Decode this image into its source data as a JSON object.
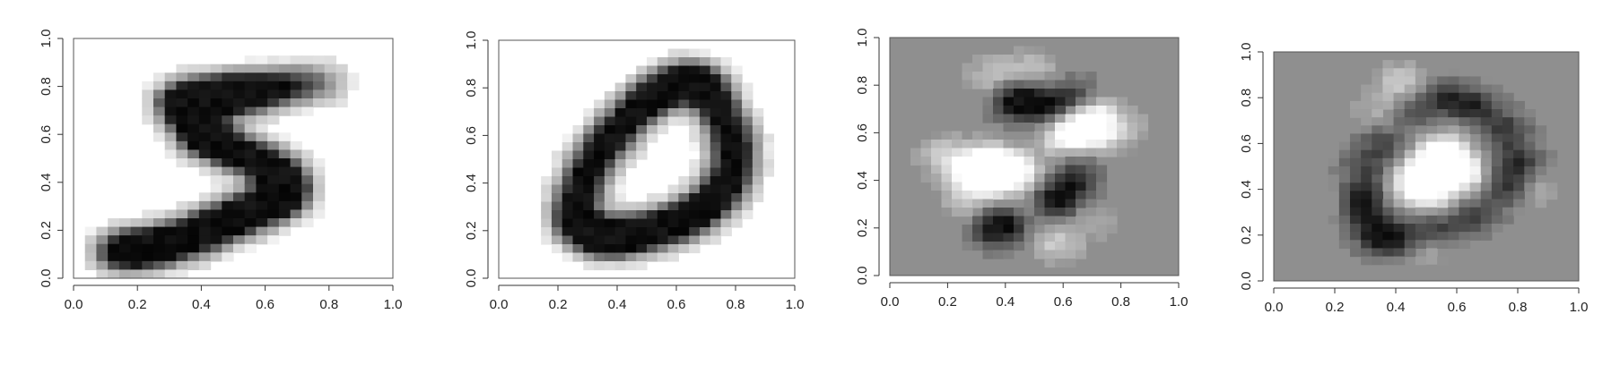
{
  "chart_data": [
    {
      "type": "heatmap",
      "xlim": [
        0,
        1
      ],
      "ylim": [
        0,
        1
      ],
      "x_ticks": [
        "0.0",
        "0.2",
        "0.4",
        "0.6",
        "0.8",
        "1.0"
      ],
      "y_ticks": [
        "0.0",
        "0.2",
        "0.4",
        "0.6",
        "0.8",
        "1.0"
      ],
      "grid": false,
      "colormap": "grayscale",
      "background": "#ffffff",
      "cells": [
        [
          0.14,
          0.11,
          0.92
        ],
        [
          0.2,
          0.12,
          0.9
        ],
        [
          0.26,
          0.13,
          0.85
        ],
        [
          0.32,
          0.15,
          0.78
        ],
        [
          0.38,
          0.18,
          0.85
        ],
        [
          0.44,
          0.21,
          0.88
        ],
        [
          0.5,
          0.25,
          0.9
        ],
        [
          0.56,
          0.28,
          0.85
        ],
        [
          0.62,
          0.31,
          0.82
        ],
        [
          0.67,
          0.35,
          0.9
        ],
        [
          0.66,
          0.42,
          0.88
        ],
        [
          0.6,
          0.48,
          0.85
        ],
        [
          0.52,
          0.52,
          0.88
        ],
        [
          0.45,
          0.56,
          0.82
        ],
        [
          0.4,
          0.6,
          0.86
        ],
        [
          0.38,
          0.66,
          0.9
        ],
        [
          0.33,
          0.73,
          0.88
        ],
        [
          0.38,
          0.75,
          0.92
        ],
        [
          0.44,
          0.76,
          0.9
        ],
        [
          0.5,
          0.77,
          0.92
        ],
        [
          0.56,
          0.77,
          0.8
        ],
        [
          0.62,
          0.79,
          0.6
        ],
        [
          0.68,
          0.8,
          0.45
        ],
        [
          0.74,
          0.81,
          0.35
        ],
        [
          0.8,
          0.82,
          0.25
        ]
      ]
    },
    {
      "type": "heatmap",
      "xlim": [
        0,
        1
      ],
      "ylim": [
        0,
        1
      ],
      "x_ticks": [
        "0.0",
        "0.2",
        "0.4",
        "0.6",
        "0.8",
        "1.0"
      ],
      "y_ticks": [
        "0.0",
        "0.2",
        "0.4",
        "0.6",
        "0.8",
        "1.0"
      ],
      "grid": false,
      "colormap": "grayscale",
      "background": "#ffffff",
      "cells": [
        [
          0.25,
          0.25,
          0.9
        ],
        [
          0.27,
          0.35,
          0.92
        ],
        [
          0.3,
          0.45,
          0.92
        ],
        [
          0.35,
          0.55,
          0.9
        ],
        [
          0.4,
          0.62,
          0.88
        ],
        [
          0.46,
          0.7,
          0.9
        ],
        [
          0.52,
          0.76,
          0.92
        ],
        [
          0.58,
          0.81,
          0.92
        ],
        [
          0.65,
          0.84,
          0.85
        ],
        [
          0.7,
          0.8,
          0.9
        ],
        [
          0.74,
          0.72,
          0.9
        ],
        [
          0.78,
          0.62,
          0.92
        ],
        [
          0.8,
          0.52,
          0.92
        ],
        [
          0.78,
          0.42,
          0.9
        ],
        [
          0.74,
          0.34,
          0.9
        ],
        [
          0.68,
          0.28,
          0.88
        ],
        [
          0.62,
          0.24,
          0.85
        ],
        [
          0.55,
          0.21,
          0.9
        ],
        [
          0.48,
          0.19,
          0.9
        ],
        [
          0.41,
          0.17,
          0.92
        ],
        [
          0.35,
          0.17,
          0.9
        ],
        [
          0.3,
          0.19,
          0.9
        ]
      ]
    },
    {
      "type": "heatmap",
      "xlim": [
        0,
        1
      ],
      "ylim": [
        0,
        1
      ],
      "x_ticks": [
        "0.0",
        "0.2",
        "0.4",
        "0.6",
        "0.8",
        "1.0"
      ],
      "y_ticks": [
        "0.0",
        "0.2",
        "0.4",
        "0.6",
        "0.8",
        "1.0"
      ],
      "grid": false,
      "colormap": "grayscale",
      "background": "#8f8f8f",
      "cells": [
        [
          0.3,
          0.4,
          0.85
        ],
        [
          0.38,
          0.42,
          0.9
        ],
        [
          0.44,
          0.44,
          0.85
        ],
        [
          0.34,
          0.48,
          0.7
        ],
        [
          0.26,
          0.46,
          0.6
        ],
        [
          0.66,
          0.62,
          0.92
        ],
        [
          0.72,
          0.66,
          0.85
        ],
        [
          0.6,
          0.58,
          0.7
        ],
        [
          0.48,
          0.72,
          -0.85
        ],
        [
          0.42,
          0.74,
          -0.7
        ],
        [
          0.56,
          0.72,
          -0.6
        ],
        [
          0.64,
          0.76,
          -0.5
        ],
        [
          0.36,
          0.2,
          -0.85
        ],
        [
          0.42,
          0.22,
          -0.75
        ],
        [
          0.56,
          0.3,
          -0.8
        ],
        [
          0.62,
          0.36,
          -0.7
        ],
        [
          0.66,
          0.44,
          -0.5
        ],
        [
          0.58,
          0.14,
          0.5
        ],
        [
          0.46,
          0.26,
          0.4
        ],
        [
          0.36,
          0.84,
          0.45
        ],
        [
          0.5,
          0.86,
          0.4
        ],
        [
          0.18,
          0.5,
          0.4
        ],
        [
          0.74,
          0.56,
          0.35
        ],
        [
          0.7,
          0.24,
          0.25
        ],
        [
          0.82,
          0.62,
          0.2
        ],
        [
          0.26,
          0.3,
          0.3
        ]
      ]
    },
    {
      "type": "heatmap",
      "xlim": [
        0,
        1
      ],
      "ylim": [
        0,
        1
      ],
      "x_ticks": [
        "0.0",
        "0.2",
        "0.4",
        "0.6",
        "0.8",
        "1.0"
      ],
      "y_ticks": [
        "0.0",
        "0.2",
        "0.4",
        "0.6",
        "0.8",
        "1.0"
      ],
      "grid": false,
      "colormap": "grayscale",
      "background": "#8f8f8f",
      "cells": [
        [
          0.5,
          0.5,
          0.85
        ],
        [
          0.58,
          0.5,
          0.9
        ],
        [
          0.62,
          0.46,
          0.75
        ],
        [
          0.44,
          0.42,
          0.8
        ],
        [
          0.52,
          0.38,
          0.75
        ],
        [
          0.56,
          0.58,
          0.65
        ],
        [
          0.3,
          0.38,
          -0.7
        ],
        [
          0.28,
          0.3,
          -0.75
        ],
        [
          0.34,
          0.2,
          -0.85
        ],
        [
          0.42,
          0.18,
          -0.7
        ],
        [
          0.54,
          0.22,
          -0.6
        ],
        [
          0.66,
          0.28,
          -0.55
        ],
        [
          0.76,
          0.4,
          -0.7
        ],
        [
          0.8,
          0.52,
          -0.8
        ],
        [
          0.76,
          0.66,
          -0.7
        ],
        [
          0.66,
          0.76,
          -0.75
        ],
        [
          0.56,
          0.8,
          -0.7
        ],
        [
          0.44,
          0.74,
          -0.6
        ],
        [
          0.36,
          0.6,
          -0.55
        ],
        [
          0.3,
          0.5,
          -0.5
        ],
        [
          0.42,
          0.86,
          0.5
        ],
        [
          0.36,
          0.74,
          0.4
        ],
        [
          0.5,
          0.14,
          0.35
        ],
        [
          0.86,
          0.4,
          0.25
        ],
        [
          0.22,
          0.32,
          0.25
        ]
      ]
    }
  ]
}
